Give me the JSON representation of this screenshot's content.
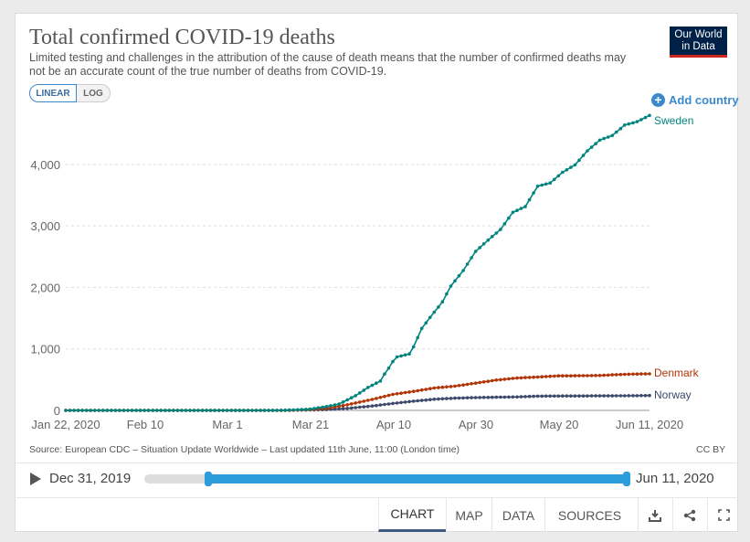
{
  "header": {
    "title": "Total confirmed COVID-19 deaths",
    "subtitle": "Limited testing and challenges in the attribution of the cause of death means that the number of confirmed deaths may not be an accurate count of the true number of deaths from COVID-19.",
    "logo_line1": "Our World",
    "logo_line2": "in Data"
  },
  "controls": {
    "linear_label": "LINEAR",
    "log_label": "LOG",
    "add_country_label": "Add country"
  },
  "chart_data": {
    "type": "line",
    "title": "Total confirmed COVID-19 deaths",
    "x_ticks": [
      "Jan 22, 2020",
      "Feb 10",
      "Mar 1",
      "Mar 21",
      "Apr 10",
      "Apr 30",
      "May 20",
      "Jun 11, 2020"
    ],
    "x_range": [
      "2020-01-22",
      "2020-06-11"
    ],
    "y_ticks": [
      "0",
      "1,000",
      "2,000",
      "3,000",
      "4,000"
    ],
    "ylim": [
      0,
      4800
    ],
    "grid": true,
    "colors": {
      "Sweden": "#00847e",
      "Denmark": "#b13507",
      "Norway": "#3d4a6b"
    },
    "series": [
      {
        "name": "Sweden",
        "points": [
          [
            "2020-01-22",
            0
          ],
          [
            "2020-03-10",
            0
          ],
          [
            "2020-03-14",
            1
          ],
          [
            "2020-03-18",
            10
          ],
          [
            "2020-03-21",
            21
          ],
          [
            "2020-03-25",
            62
          ],
          [
            "2020-03-28",
            102
          ],
          [
            "2020-04-01",
            239
          ],
          [
            "2020-04-04",
            373
          ],
          [
            "2020-04-07",
            477
          ],
          [
            "2020-04-08",
            591
          ],
          [
            "2020-04-09",
            687
          ],
          [
            "2020-04-10",
            793
          ],
          [
            "2020-04-11",
            870
          ],
          [
            "2020-04-14",
            919
          ],
          [
            "2020-04-15",
            1033
          ],
          [
            "2020-04-17",
            1333
          ],
          [
            "2020-04-19",
            1511
          ],
          [
            "2020-04-22",
            1765
          ],
          [
            "2020-04-24",
            2021
          ],
          [
            "2020-04-27",
            2274
          ],
          [
            "2020-04-30",
            2586
          ],
          [
            "2020-05-03",
            2769
          ],
          [
            "2020-05-06",
            2941
          ],
          [
            "2020-05-09",
            3220
          ],
          [
            "2020-05-12",
            3313
          ],
          [
            "2020-05-15",
            3646
          ],
          [
            "2020-05-18",
            3698
          ],
          [
            "2020-05-21",
            3871
          ],
          [
            "2020-05-24",
            3992
          ],
          [
            "2020-05-27",
            4220
          ],
          [
            "2020-05-30",
            4395
          ],
          [
            "2020-06-02",
            4468
          ],
          [
            "2020-06-05",
            4639
          ],
          [
            "2020-06-08",
            4694
          ],
          [
            "2020-06-11",
            4795
          ]
        ]
      },
      {
        "name": "Denmark",
        "points": [
          [
            "2020-01-22",
            0
          ],
          [
            "2020-03-14",
            0
          ],
          [
            "2020-03-16",
            2
          ],
          [
            "2020-03-21",
            13
          ],
          [
            "2020-03-25",
            34
          ],
          [
            "2020-03-30",
            90
          ],
          [
            "2020-04-05",
            179
          ],
          [
            "2020-04-10",
            260
          ],
          [
            "2020-04-15",
            309
          ],
          [
            "2020-04-20",
            364
          ],
          [
            "2020-04-25",
            394
          ],
          [
            "2020-04-30",
            443
          ],
          [
            "2020-05-05",
            493
          ],
          [
            "2020-05-10",
            526
          ],
          [
            "2020-05-15",
            543
          ],
          [
            "2020-05-20",
            561
          ],
          [
            "2020-05-25",
            563
          ],
          [
            "2020-05-30",
            568
          ],
          [
            "2020-06-05",
            587
          ],
          [
            "2020-06-11",
            595
          ]
        ]
      },
      {
        "name": "Norway",
        "points": [
          [
            "2020-01-22",
            0
          ],
          [
            "2020-03-12",
            0
          ],
          [
            "2020-03-14",
            1
          ],
          [
            "2020-03-21",
            7
          ],
          [
            "2020-03-25",
            14
          ],
          [
            "2020-03-30",
            32
          ],
          [
            "2020-04-05",
            71
          ],
          [
            "2020-04-10",
            113
          ],
          [
            "2020-04-15",
            150
          ],
          [
            "2020-04-20",
            181
          ],
          [
            "2020-04-25",
            199
          ],
          [
            "2020-04-30",
            208
          ],
          [
            "2020-05-05",
            214
          ],
          [
            "2020-05-10",
            219
          ],
          [
            "2020-05-15",
            232
          ],
          [
            "2020-05-20",
            234
          ],
          [
            "2020-05-25",
            235
          ],
          [
            "2020-05-30",
            236
          ],
          [
            "2020-06-05",
            238
          ],
          [
            "2020-06-11",
            242
          ]
        ]
      }
    ]
  },
  "footer": {
    "source": "Source: European CDC – Situation Update Worldwide – Last updated 11th June, 11:00 (London time)",
    "license": "CC BY"
  },
  "timeline": {
    "start_label": "Dec 31, 2019",
    "end_label": "Jun 11, 2020",
    "selected_start": "Jan 22, 2020",
    "selected_end": "Jun 11, 2020"
  },
  "tabs": [
    "CHART",
    "MAP",
    "DATA",
    "SOURCES"
  ],
  "icons": [
    "download-icon",
    "share-icon",
    "fullscreen-icon"
  ]
}
